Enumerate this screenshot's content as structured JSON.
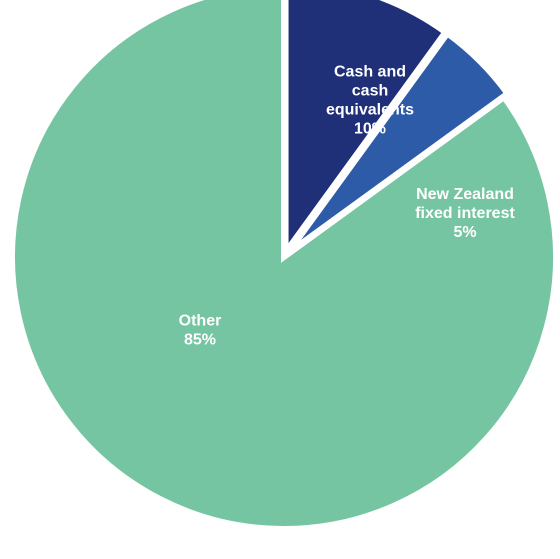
{
  "chart_data": {
    "type": "pie",
    "slices": [
      {
        "label_lines": [
          "Cash and",
          "cash",
          "equivalents"
        ],
        "value_text": "10%",
        "value": 10,
        "color": "#1f2f78"
      },
      {
        "label_lines": [
          "New Zealand",
          "fixed interest"
        ],
        "value_text": "5%",
        "value": 5,
        "color": "#2d5ba8"
      },
      {
        "label_lines": [
          "Other"
        ],
        "value_text": "85%",
        "value": 85,
        "color": "#76c5a2"
      }
    ]
  }
}
